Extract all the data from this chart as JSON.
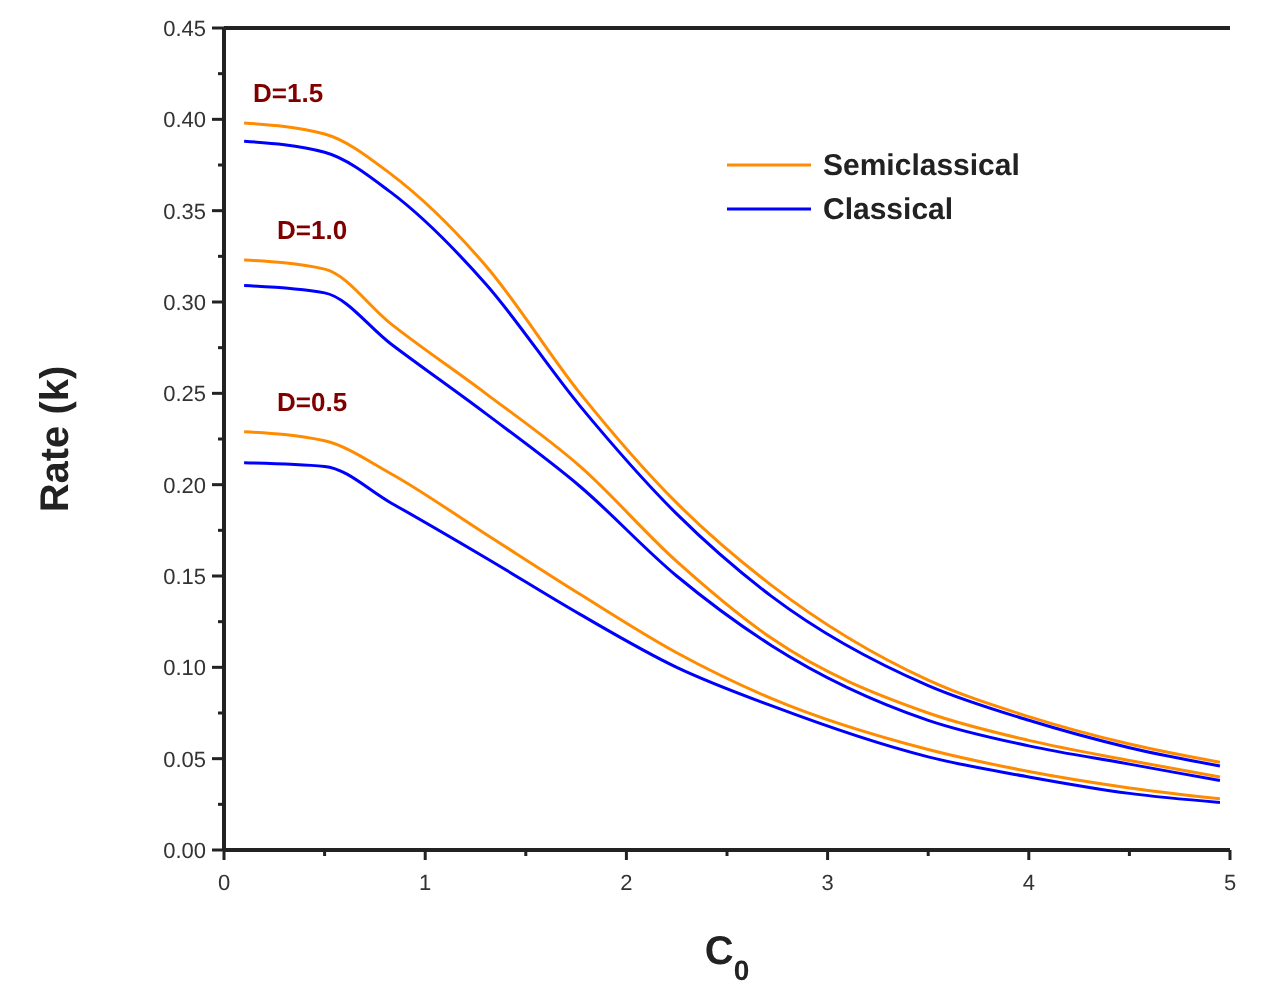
{
  "chart_data": {
    "type": "line",
    "xlabel": "C$_{0}$",
    "ylabel": "Rate (k)",
    "x": [
      0.1,
      0.5,
      0.83,
      1.3,
      1.77,
      2.25,
      2.72,
      3.5,
      4,
      4.5,
      4.95
    ],
    "series": [
      {
        "name": "Semiclassical",
        "color": "#ff8c00",
        "values": [
          0.398,
          0.392,
          0.37,
          0.32,
          0.25,
          0.19,
          0.145,
          0.093,
          0.073,
          0.058,
          0.048
        ]
      },
      {
        "name": "Classical",
        "color": "#0000ff",
        "values": [
          0.388,
          0.382,
          0.36,
          0.31,
          0.243,
          0.184,
          0.139,
          0.09,
          0.071,
          0.056,
          0.046
        ]
      },
      {
        "color": "#ff8c00",
        "values": [
          0.323,
          0.318,
          0.288,
          0.25,
          0.21,
          0.158,
          0.116,
          0.075,
          0.06,
          0.049,
          0.04
        ]
      },
      {
        "color": "#0000ff",
        "values": [
          0.309,
          0.305,
          0.277,
          0.239,
          0.199,
          0.15,
          0.112,
          0.071,
          0.057,
          0.047,
          0.038
        ]
      },
      {
        "color": "#ff8c00",
        "values": [
          0.229,
          0.224,
          0.206,
          0.173,
          0.14,
          0.108,
          0.083,
          0.055,
          0.043,
          0.034,
          0.028
        ]
      },
      {
        "color": "#0000ff",
        "values": [
          0.212,
          0.21,
          0.19,
          0.16,
          0.129,
          0.1,
          0.079,
          0.051,
          0.04,
          0.031,
          0.026
        ]
      }
    ],
    "xlim": [
      0,
      5
    ],
    "xticks": [
      0,
      {
        "value": 0.5,
        "label": null
      },
      1,
      {
        "value": 1.5,
        "label": null
      },
      2,
      {
        "value": 2.5,
        "label": null
      },
      3,
      {
        "value": 3.5,
        "label": null
      },
      4,
      {
        "value": 4.5,
        "label": null
      },
      5
    ],
    "ylim": [
      0,
      0.45
    ],
    "yticks": [
      {
        "value": 0,
        "label": "0.00"
      },
      {
        "value": 0.025,
        "label": null
      },
      {
        "value": 0.05,
        "label": "0.05"
      },
      {
        "value": 0.075,
        "label": null
      },
      {
        "value": 0.1,
        "label": "0.10"
      },
      {
        "value": 0.125,
        "label": null
      },
      {
        "value": 0.15,
        "label": "0.15"
      },
      {
        "value": 0.175,
        "label": null
      },
      {
        "value": 0.2,
        "label": "0.20"
      },
      {
        "value": 0.225,
        "label": null
      },
      {
        "value": 0.25,
        "label": "0.25"
      },
      {
        "value": 0.275,
        "label": null
      },
      {
        "value": 0.3,
        "label": "0.30"
      },
      {
        "value": 0.325,
        "label": null
      },
      {
        "value": 0.35,
        "label": "0.35"
      },
      {
        "value": 0.375,
        "label": null
      },
      {
        "value": 0.4,
        "label": "0.40"
      },
      {
        "value": 0.425,
        "label": null
      },
      {
        "value": 0.45,
        "label": "0.45"
      }
    ],
    "annotations": [
      "D=1.5",
      "D=1.0",
      "D=0.5"
    ],
    "legend": "top right",
    "grid": false,
    "marker": "none",
    "line_style": "solid"
  }
}
